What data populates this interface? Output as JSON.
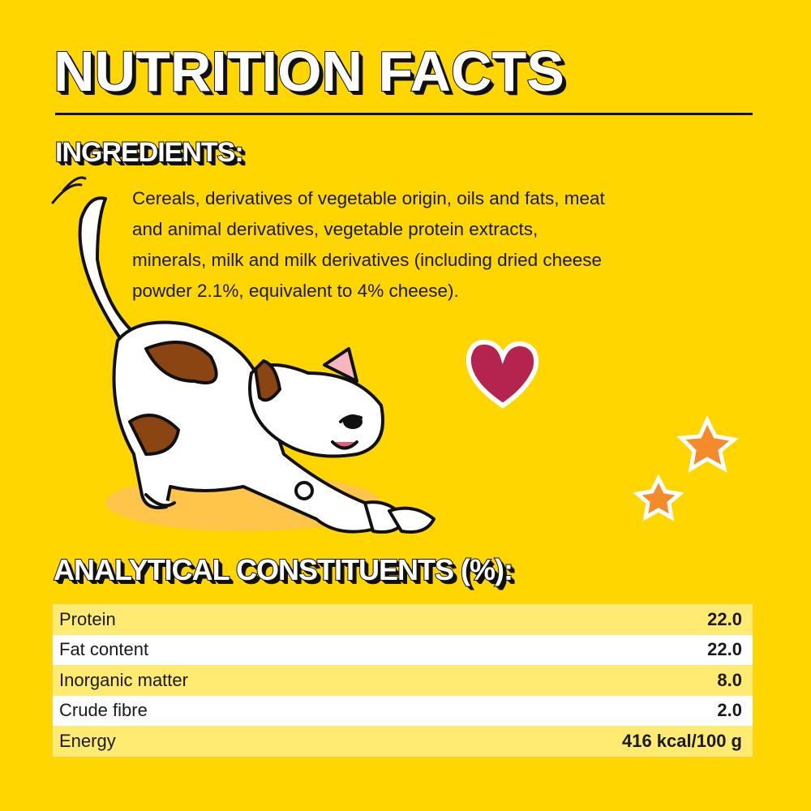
{
  "title": "NUTRITION FACTS",
  "ingredients": {
    "heading": "INGREDIENTS:",
    "lines": [
      "Cereals, derivatives of vegetable origin, oils and fats, meat",
      "and animal derivatives, vegetable protein extracts,",
      "minerals, milk and milk derivatives (including dried cheese",
      "powder 2.1%, equivalent to 4% cheese)."
    ]
  },
  "analytical": {
    "heading": "ANALYTICAL CONSTITUENTS (%):",
    "rows": [
      {
        "label": "Protein",
        "value": "22.0"
      },
      {
        "label": "Fat content",
        "value": "22.0"
      },
      {
        "label": "Inorganic matter",
        "value": "8.0"
      },
      {
        "label": "Crude fibre",
        "value": "2.0"
      },
      {
        "label": "Energy",
        "value": "416 kcal/100 g"
      }
    ]
  },
  "colors": {
    "background": "#FFD600",
    "row_alt": "#FFEB72",
    "heart": "#B5234F",
    "star": "#F58A2A",
    "cat_patch": "#8B4513"
  }
}
